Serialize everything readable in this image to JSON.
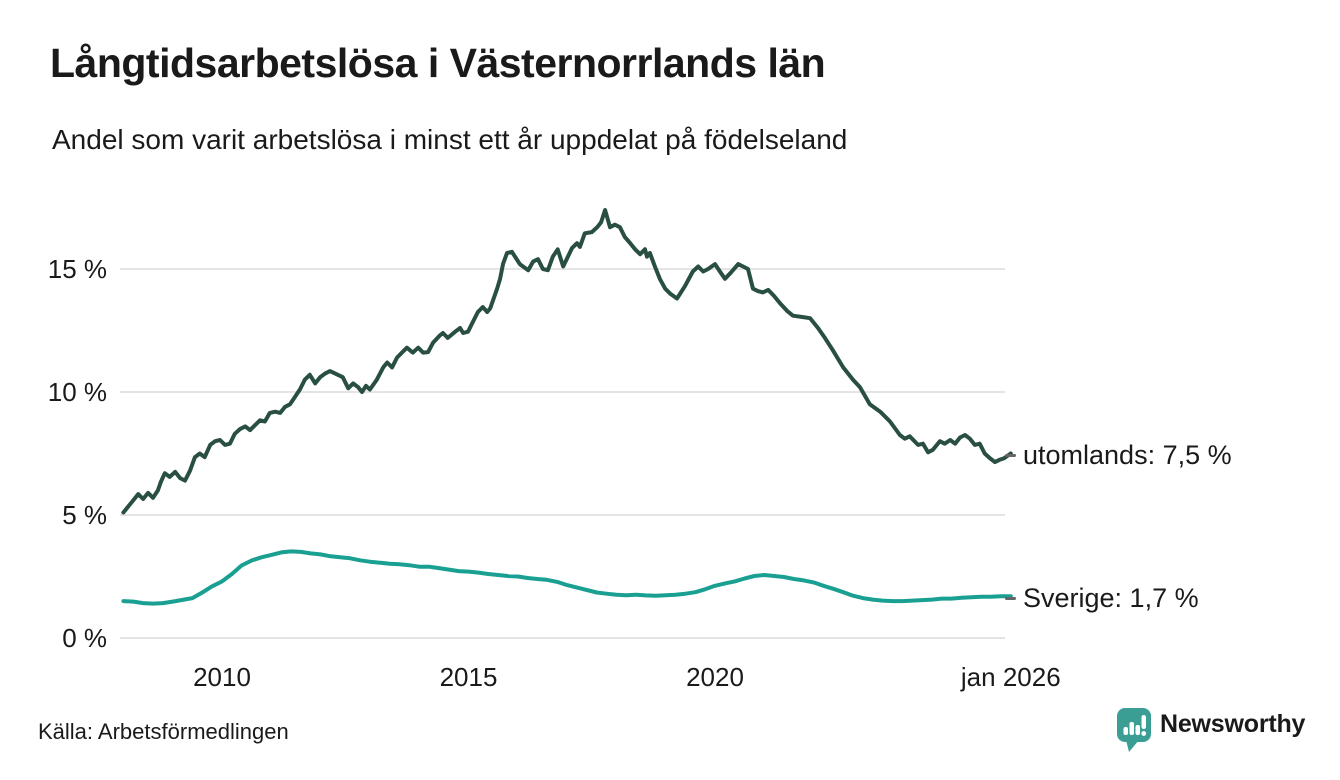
{
  "header": {
    "title": "Långtidsarbetslösa i Västernorrlands län",
    "subtitle": "Andel som varit arbetslösa i minst ett år uppdelat på födelseland"
  },
  "footer": {
    "source": "Källa: Arbetsförmedlingen",
    "brand": "Newsworthy",
    "brand_icon": "newsworthy-pin-barchart-icon"
  },
  "colors": {
    "utomlands_line": "#294f41",
    "sverige_line": "#1aa092",
    "grid": "#e4e4e4",
    "text": "#1a1a1a",
    "leader_dash": "#666666",
    "brand": "#3b9e95"
  },
  "chart_data": {
    "type": "line",
    "title": "Långtidsarbetslösa i Västernorrlands län",
    "subtitle": "Andel som varit arbetslösa i minst ett år uppdelat på födelseland",
    "unit": "%",
    "grid": true,
    "legend_position": "line-end-labels-right",
    "x_axis": {
      "range": [
        2008,
        2026
      ],
      "ticks": [
        {
          "value": 2010,
          "label": "2010"
        },
        {
          "value": 2015,
          "label": "2015"
        },
        {
          "value": 2020,
          "label": "2020"
        },
        {
          "value": 2026,
          "label": "jan 2026"
        }
      ]
    },
    "y_axis": {
      "range": [
        0,
        18.2
      ],
      "ticks": [
        {
          "value": 15,
          "label": "15 %"
        },
        {
          "value": 10,
          "label": "10 %"
        },
        {
          "value": 5,
          "label": "5 %"
        },
        {
          "value": 0,
          "label": "0 %"
        }
      ]
    },
    "series": [
      {
        "name": "utomlands",
        "end_label": "utomlands: 7,5 %",
        "end_value_text": "7,5 %",
        "color": "#294f41",
        "x": [
          2008.0,
          2008.1,
          2008.2,
          2008.3,
          2008.4,
          2008.5,
          2008.6,
          2008.7,
          2008.76,
          2008.84,
          2008.94,
          2009.05,
          2009.15,
          2009.25,
          2009.35,
          2009.45,
          2009.55,
          2009.65,
          2009.76,
          2009.86,
          2009.96,
          2010.06,
          2010.16,
          2010.26,
          2010.37,
          2010.47,
          2010.57,
          2010.67,
          2010.77,
          2010.87,
          2010.97,
          2011.08,
          2011.18,
          2011.28,
          2011.38,
          2011.48,
          2011.58,
          2011.68,
          2011.78,
          2011.89,
          2011.99,
          2012.09,
          2012.19,
          2012.45,
          2012.56,
          2012.66,
          2012.76,
          2012.84,
          2012.92,
          2013.0,
          2013.14,
          2013.27,
          2013.35,
          2013.45,
          2013.55,
          2013.65,
          2013.75,
          2013.87,
          2013.98,
          2014.08,
          2014.18,
          2014.28,
          2014.42,
          2014.48,
          2014.58,
          2014.73,
          2014.83,
          2014.89,
          2014.99,
          2015.09,
          2015.19,
          2015.29,
          2015.38,
          2015.44,
          2015.58,
          2015.64,
          2015.7,
          2015.78,
          2015.88,
          2016.04,
          2016.21,
          2016.31,
          2016.41,
          2016.51,
          2016.61,
          2016.71,
          2016.81,
          2016.92,
          2017.1,
          2017.2,
          2017.26,
          2017.36,
          2017.5,
          2017.61,
          2017.69,
          2017.77,
          2017.87,
          2017.97,
          2018.07,
          2018.17,
          2018.28,
          2018.38,
          2018.48,
          2018.58,
          2018.62,
          2018.68,
          2018.78,
          2018.88,
          2018.99,
          2019.09,
          2019.23,
          2019.39,
          2019.55,
          2019.66,
          2019.76,
          2019.86,
          2020.0,
          2020.1,
          2020.2,
          2020.32,
          2020.47,
          2020.57,
          2020.67,
          2020.77,
          2020.87,
          2020.97,
          2021.08,
          2021.2,
          2021.32,
          2021.46,
          2021.58,
          2021.77,
          2021.93,
          2022.09,
          2022.23,
          2022.39,
          2022.6,
          2022.8,
          2022.94,
          2023.14,
          2023.35,
          2023.55,
          2023.75,
          2023.85,
          2023.95,
          2024.12,
          2024.22,
          2024.32,
          2024.42,
          2024.56,
          2024.66,
          2024.77,
          2024.87,
          2024.97,
          2025.07,
          2025.17,
          2025.27,
          2025.37,
          2025.47,
          2025.58,
          2025.68,
          2025.78,
          2025.86,
          2026.0
        ],
        "values": [
          5.1,
          5.35,
          5.6,
          5.85,
          5.65,
          5.9,
          5.7,
          6.0,
          6.35,
          6.7,
          6.55,
          6.75,
          6.5,
          6.4,
          6.8,
          7.35,
          7.5,
          7.35,
          7.85,
          8.0,
          8.05,
          7.85,
          7.9,
          8.3,
          8.5,
          8.6,
          8.45,
          8.65,
          8.85,
          8.8,
          9.15,
          9.2,
          9.15,
          9.4,
          9.5,
          9.8,
          10.1,
          10.5,
          10.7,
          10.35,
          10.6,
          10.75,
          10.85,
          10.6,
          10.15,
          10.35,
          10.2,
          10.0,
          10.25,
          10.1,
          10.5,
          11.0,
          11.2,
          11.0,
          11.4,
          11.6,
          11.8,
          11.6,
          11.8,
          11.6,
          11.62,
          12.0,
          12.3,
          12.4,
          12.2,
          12.45,
          12.6,
          12.4,
          12.45,
          12.85,
          13.25,
          13.45,
          13.25,
          13.4,
          14.2,
          14.6,
          15.2,
          15.65,
          15.7,
          15.2,
          14.95,
          15.3,
          15.4,
          15.0,
          14.95,
          15.5,
          15.8,
          15.1,
          15.85,
          16.05,
          15.9,
          16.45,
          16.5,
          16.7,
          16.9,
          17.4,
          16.7,
          16.8,
          16.7,
          16.3,
          16.05,
          15.8,
          15.6,
          15.8,
          15.5,
          15.65,
          15.1,
          14.6,
          14.2,
          14.0,
          13.8,
          14.3,
          14.9,
          15.1,
          14.9,
          15.0,
          15.2,
          14.9,
          14.6,
          14.85,
          15.2,
          15.1,
          15.0,
          14.2,
          14.1,
          14.05,
          14.15,
          13.9,
          13.6,
          13.3,
          13.1,
          13.05,
          13.0,
          12.6,
          12.2,
          11.7,
          11.0,
          10.5,
          10.2,
          9.5,
          9.2,
          8.8,
          8.25,
          8.1,
          8.2,
          7.85,
          7.9,
          7.55,
          7.65,
          8.0,
          7.9,
          8.05,
          7.9,
          8.15,
          8.25,
          8.1,
          7.85,
          7.9,
          7.5,
          7.3,
          7.15,
          7.25,
          7.3,
          7.5
        ]
      },
      {
        "name": "Sverige",
        "end_label": "Sverige: 1,7 %",
        "end_value_text": "1,7 %",
        "color": "#1aa092",
        "x": [
          2008.0,
          2008.2,
          2008.4,
          2008.6,
          2008.8,
          2009.0,
          2009.2,
          2009.4,
          2009.6,
          2009.8,
          2010.0,
          2010.2,
          2010.4,
          2010.6,
          2010.8,
          2011.0,
          2011.2,
          2011.4,
          2011.6,
          2011.8,
          2012.0,
          2012.2,
          2012.4,
          2012.6,
          2012.8,
          2013.0,
          2013.2,
          2013.4,
          2013.6,
          2013.8,
          2014.0,
          2014.2,
          2014.4,
          2014.6,
          2014.8,
          2015.0,
          2015.2,
          2015.4,
          2015.6,
          2015.8,
          2016.0,
          2016.2,
          2016.4,
          2016.6,
          2016.8,
          2017.0,
          2017.2,
          2017.4,
          2017.6,
          2017.8,
          2018.0,
          2018.2,
          2018.4,
          2018.6,
          2018.8,
          2019.0,
          2019.2,
          2019.4,
          2019.6,
          2019.8,
          2020.0,
          2020.2,
          2020.4,
          2020.6,
          2020.8,
          2021.0,
          2021.2,
          2021.4,
          2021.6,
          2021.8,
          2022.0,
          2022.2,
          2022.4,
          2022.6,
          2022.8,
          2023.0,
          2023.2,
          2023.4,
          2023.6,
          2023.8,
          2024.0,
          2024.2,
          2024.4,
          2024.6,
          2024.8,
          2025.0,
          2025.2,
          2025.4,
          2025.6,
          2025.8,
          2026.0
        ],
        "values": [
          1.5,
          1.48,
          1.42,
          1.4,
          1.42,
          1.48,
          1.55,
          1.62,
          1.85,
          2.1,
          2.3,
          2.6,
          2.95,
          3.15,
          3.28,
          3.38,
          3.48,
          3.52,
          3.5,
          3.44,
          3.4,
          3.32,
          3.28,
          3.24,
          3.16,
          3.1,
          3.06,
          3.02,
          3.0,
          2.96,
          2.9,
          2.9,
          2.84,
          2.78,
          2.72,
          2.7,
          2.66,
          2.6,
          2.56,
          2.52,
          2.5,
          2.44,
          2.4,
          2.36,
          2.28,
          2.15,
          2.05,
          1.95,
          1.85,
          1.8,
          1.76,
          1.74,
          1.76,
          1.73,
          1.72,
          1.74,
          1.76,
          1.8,
          1.86,
          1.98,
          2.12,
          2.22,
          2.3,
          2.42,
          2.52,
          2.56,
          2.52,
          2.48,
          2.4,
          2.34,
          2.26,
          2.12,
          2.0,
          1.86,
          1.72,
          1.62,
          1.56,
          1.52,
          1.5,
          1.5,
          1.52,
          1.54,
          1.56,
          1.6,
          1.6,
          1.64,
          1.66,
          1.68,
          1.68,
          1.7,
          1.7
        ]
      }
    ]
  }
}
